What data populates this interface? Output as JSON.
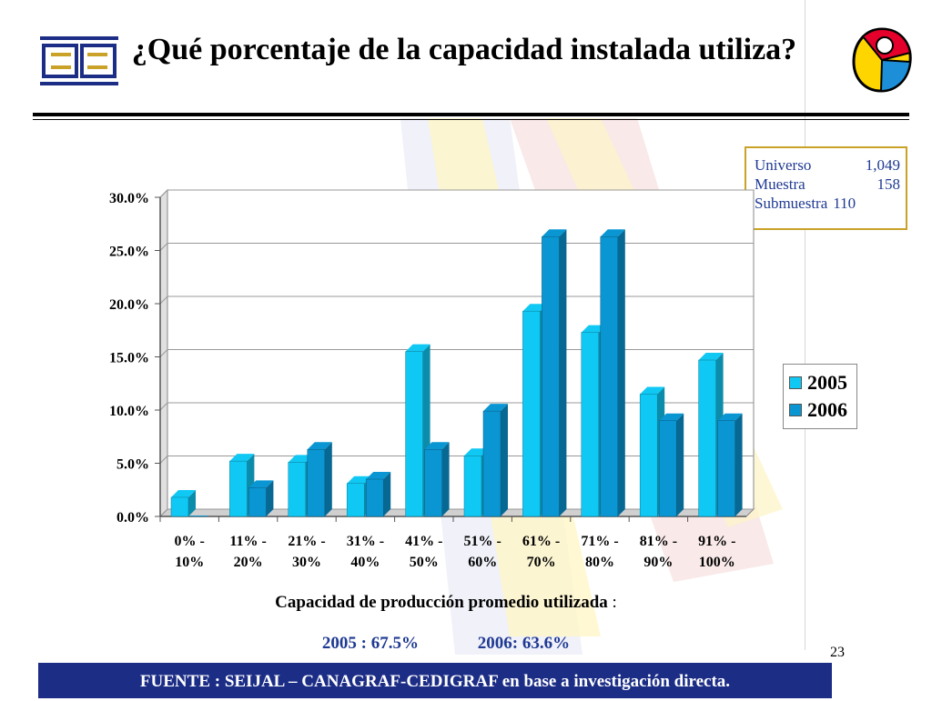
{
  "slide": {
    "title": "¿Qué porcentaje de la capacidad instalada utiliza?",
    "page_number": "23"
  },
  "stats": {
    "rows": [
      {
        "label": "Universo",
        "value": "1,049"
      },
      {
        "label": "Muestra",
        "value": "158"
      },
      {
        "label": "Submuestra",
        "value": "110"
      }
    ]
  },
  "caption": {
    "main": "Capacidad de producción promedio utilizada",
    "suffix": " :",
    "result_2005": "2005 : 67.5%",
    "result_2006": "2006:  63.6%"
  },
  "footer": {
    "source_bold": "FUENTE :  SEIJAL – CANAGRAF-CEDIGRAF",
    "source_rest": " en base a investigación directa."
  },
  "colors": {
    "series_2005": "#10c8f4",
    "series_2006": "#0a96d2",
    "footer_bg": "#1c2d86",
    "accent_text": "#1f3a93"
  },
  "chart_data": {
    "type": "bar",
    "title": "",
    "xlabel": "",
    "ylabel": "",
    "ylim": [
      0,
      30
    ],
    "yticks": [
      "0.0%",
      "5.0%",
      "10.0%",
      "15.0%",
      "20.0%",
      "25.0%",
      "30.0%"
    ],
    "categories": [
      [
        "0% -",
        "10%"
      ],
      [
        "11% -",
        "20%"
      ],
      [
        "21% -",
        "30%"
      ],
      [
        "31% -",
        "40%"
      ],
      [
        "41% -",
        "50%"
      ],
      [
        "51% -",
        "60%"
      ],
      [
        "61% -",
        "70%"
      ],
      [
        "71% -",
        "80%"
      ],
      [
        "81% -",
        "90%"
      ],
      [
        "91% -",
        "100%"
      ]
    ],
    "series": [
      {
        "name": "2005",
        "values": [
          1.8,
          5.2,
          5.1,
          3.1,
          15.5,
          5.7,
          19.3,
          17.3,
          11.5,
          14.7
        ]
      },
      {
        "name": "2006",
        "values": [
          0.0,
          2.7,
          6.3,
          3.5,
          6.3,
          9.9,
          26.3,
          26.3,
          9.0,
          9.0
        ]
      }
    ],
    "legend": "right"
  }
}
